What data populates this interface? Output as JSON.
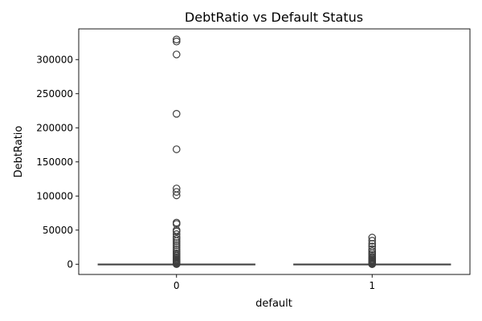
{
  "chart_data": {
    "type": "box",
    "title": "DebtRatio vs Default Status",
    "xlabel": "default",
    "ylabel": "DebtRatio",
    "categories": [
      "0",
      "1"
    ],
    "ylim": [
      -15000,
      345000
    ],
    "yticks": [
      0,
      50000,
      100000,
      150000,
      200000,
      250000,
      300000
    ],
    "ytick_labels": [
      "0",
      "50000",
      "100000",
      "150000",
      "200000",
      "250000",
      "300000"
    ],
    "grid": false,
    "legend": "none",
    "colors": {
      "box_stroke": "#3f3f3f",
      "marker_stroke": "#3f3f3f",
      "frame": "#000000"
    },
    "boxes": [
      {
        "category": "0",
        "whisker_low": 0,
        "q1": 0,
        "median": 0.4,
        "q3": 1,
        "whisker_high": 3,
        "outliers": [
          200,
          500,
          900,
          1400,
          2000,
          2800,
          3500,
          4500,
          5500,
          7000,
          8500,
          10000,
          12000,
          14000,
          16000,
          19000,
          22000,
          25000,
          28000,
          31000,
          34000,
          37000,
          40000,
          44000,
          48000,
          50000,
          59000,
          61000,
          101000,
          106000,
          111000,
          168500,
          220500,
          307500,
          326500,
          329500
        ]
      },
      {
        "category": "1",
        "whisker_low": 0,
        "q1": 0,
        "median": 0.4,
        "q3": 1,
        "whisker_high": 3,
        "outliers": [
          100,
          300,
          700,
          1200,
          1800,
          2500,
          3500,
          4800,
          6000,
          7500,
          9000,
          11000,
          13500,
          16000,
          19000,
          22000,
          26000,
          30000,
          34500,
          39000
        ]
      }
    ]
  }
}
